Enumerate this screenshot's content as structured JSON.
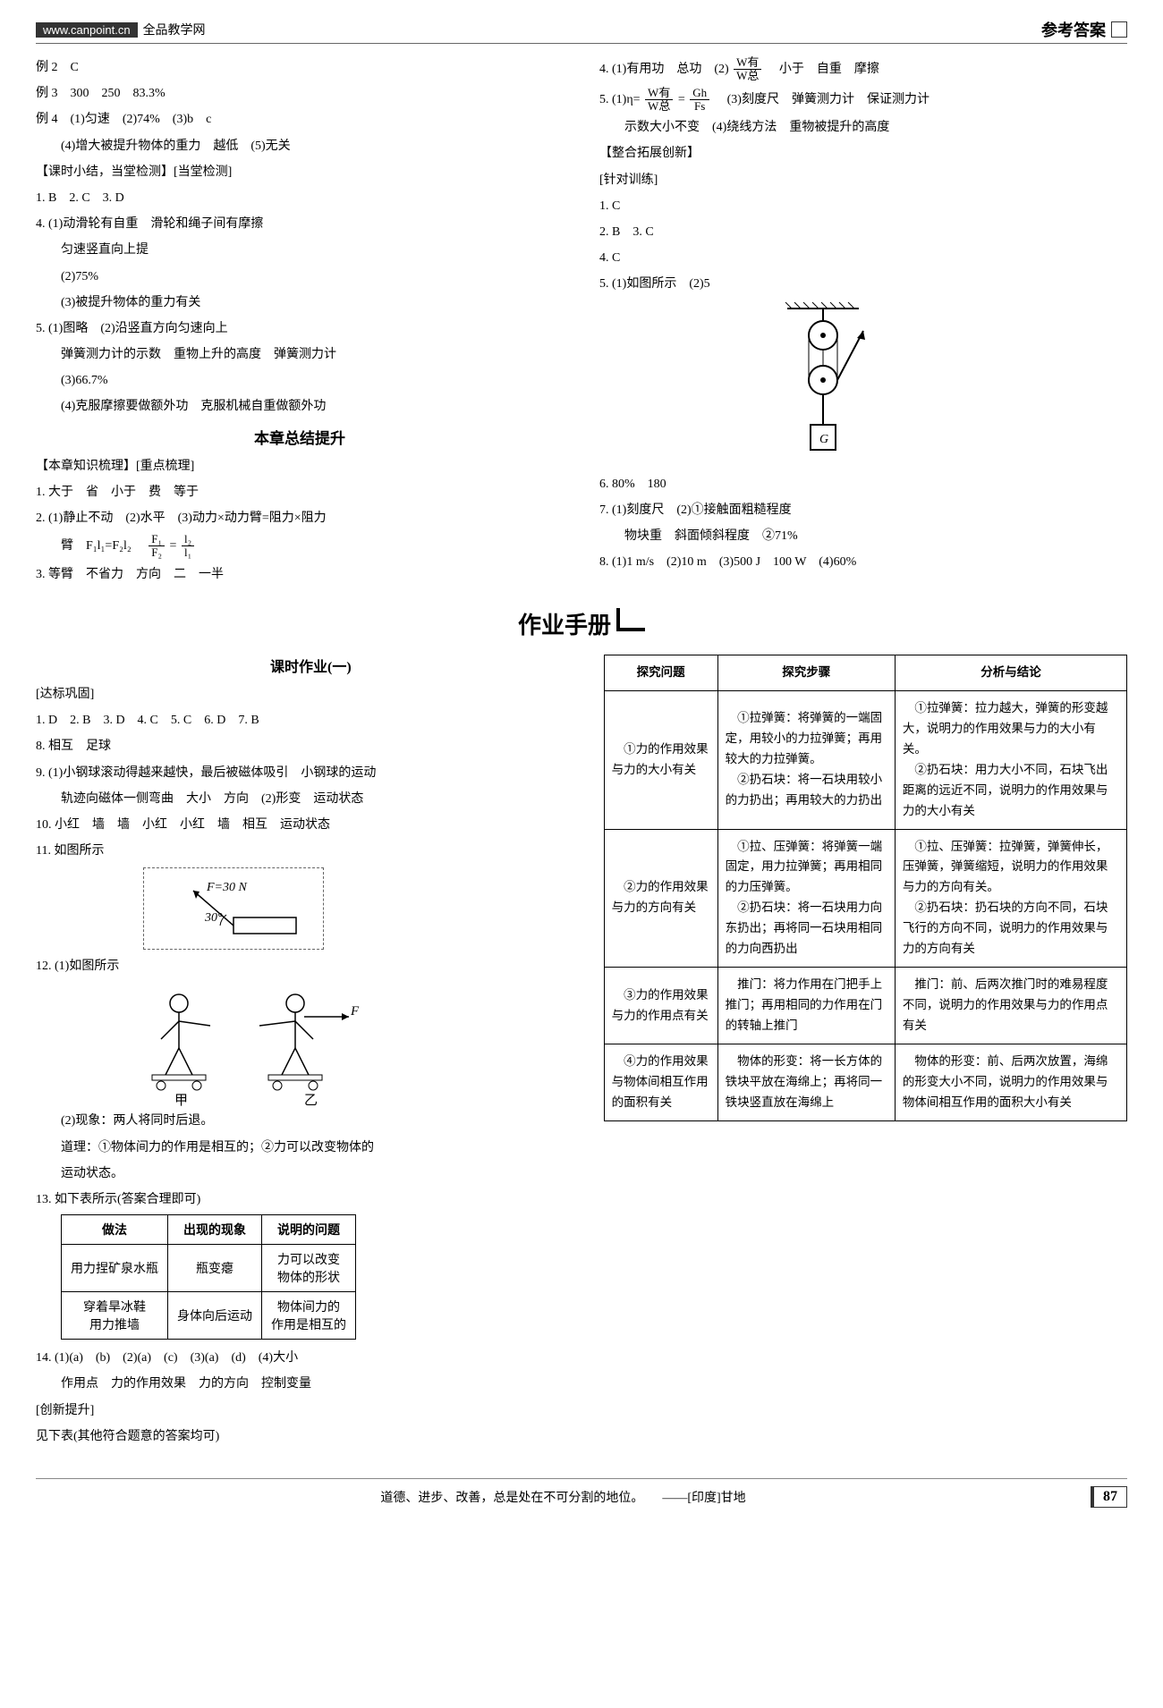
{
  "header": {
    "url": "www.canpoint.cn",
    "site": "全品教学网",
    "right": "参考答案"
  },
  "left_col": {
    "l1": "例 2　C",
    "l2": "例 3　300　250　83.3%",
    "l3": "例 4　(1)匀速　(2)74%　(3)b　c",
    "l4": "(4)增大被提升物体的重力　越低　(5)无关",
    "l5": "【课时小结，当堂检测】[当堂检测]",
    "l6": "1. B　2. C　3. D",
    "l7": "4. (1)动滑轮有自重　滑轮和绳子间有摩擦",
    "l8": "匀速竖直向上提",
    "l9": "(2)75%",
    "l10": "(3)被提升物体的重力有关",
    "l11": "5. (1)图略　(2)沿竖直方向匀速向上",
    "l12": "弹簧测力计的示数　重物上升的高度　弹簧测力计",
    "l13": "(3)66.7%",
    "l14": "(4)克服摩擦要做额外功　克服机械自重做额外功",
    "l15": "本章总结提升",
    "l16": "【本章知识梳理】[重点梳理]",
    "l17": "1. 大于　省　小于　费　等于",
    "l18_a": "2. (1)静止不动　(2)水平　(3)动力×动力臂=阻力×阻力",
    "l18_b_pre": "臂　F₁l₁=F₂l₂　",
    "frac1": {
      "num": "F₁",
      "den": "F₂"
    },
    "eq_mid": "=",
    "frac2": {
      "num": "l₂",
      "den": "l₁"
    },
    "l19": "3. 等臂　不省力　方向　二　一半"
  },
  "right_col": {
    "l1_a": "4. (1)有用功　总功　(2)",
    "frac_w": {
      "num": "W有",
      "den": "W总"
    },
    "l1_b": "　小于　自重　摩擦",
    "l2_a": "5. (1)η=",
    "frac_eta1": {
      "num": "W有",
      "den": "W总"
    },
    "l2_mid": "=",
    "frac_eta2": {
      "num": "Gh",
      "den": "Fs"
    },
    "l2_b": "　(3)刻度尺　弹簧测力计　保证测力计",
    "l3": "示数大小不变　(4)绕线方法　重物被提升的高度",
    "l4": "【整合拓展创新】",
    "l5": "[针对训练]",
    "l6": "1. C",
    "l7": "2. B　3. C",
    "l8": "4. C",
    "l9": "5. (1)如图所示　(2)5",
    "l10": "6. 80%　180",
    "l11": "7. (1)刻度尺　(2)①接触面粗糙程度",
    "l12": "物块重　斜面倾斜程度　②71%",
    "l13": "8. (1)1 m/s　(2)10 m　(3)500 J　100 W　(4)60%"
  },
  "big_title": "作业手册",
  "workbook_left": {
    "title": "课时作业(一)",
    "l1": "[达标巩固]",
    "l2": "1. D　2. B　3. D　4. C　5. C　6. D　7. B",
    "l3": "8. 相互　足球",
    "l4": "9. (1)小钢球滚动得越来越快，最后被磁体吸引　小钢球的运动",
    "l5": "轨迹向磁体一侧弯曲　大小　方向　(2)形变　运动状态",
    "l6": "10. 小红　墙　墙　小红　小红　墙　相互　运动状态",
    "l7": "11. 如图所示",
    "fig_f": "F=30 N",
    "fig_angle": "30°",
    "l8": "12. (1)如图所示",
    "skate_jia": "甲",
    "skate_yi": "乙",
    "skate_f": "F",
    "l9": "(2)现象：两人将同时后退。",
    "l10": "道理：①物体间力的作用是相互的；②力可以改变物体的",
    "l11": "运动状态。",
    "l12": "13. 如下表所示(答案合理即可)",
    "table13": {
      "headers": [
        "做法",
        "出现的现象",
        "说明的问题"
      ],
      "rows": [
        [
          "用力捏矿泉水瓶",
          "瓶变瘪",
          "力可以改变\n物体的形状"
        ],
        [
          "穿着旱冰鞋\n用力推墙",
          "身体向后运动",
          "物体间力的\n作用是相互的"
        ]
      ]
    },
    "l13": "14. (1)(a)　(b)　(2)(a)　(c)　(3)(a)　(d)　(4)大小",
    "l14": "作用点　力的作用效果　力的方向　控制变量",
    "l15": "[创新提升]",
    "l16": "见下表(其他符合题意的答案均可)"
  },
  "workbook_right": {
    "headers": [
      "探究问题",
      "探究步骤",
      "分析与结论"
    ],
    "rows": [
      [
        "①力的作用效果与力的大小有关",
        "①拉弹簧：将弹簧的一端固定，用较小的力拉弹簧；再用较大的力拉弹簧。\n②扔石块：将一石块用较小的力扔出；再用较大的力扔出",
        "①拉弹簧：拉力越大，弹簧的形变越大，说明力的作用效果与力的大小有关。\n②扔石块：用力大小不同，石块飞出距离的远近不同，说明力的作用效果与力的大小有关"
      ],
      [
        "②力的作用效果与力的方向有关",
        "①拉、压弹簧：将弹簧一端固定，用力拉弹簧；再用相同的力压弹簧。\n②扔石块：将一石块用力向东扔出；再将同一石块用相同的力向西扔出",
        "①拉、压弹簧：拉弹簧，弹簧伸长，压弹簧，弹簧缩短，说明力的作用效果与力的方向有关。\n②扔石块：扔石块的方向不同，石块飞行的方向不同，说明力的作用效果与力的方向有关"
      ],
      [
        "③力的作用效果与力的作用点有关",
        "推门：将力作用在门把手上推门；再用相同的力作用在门的转轴上推门",
        "推门：前、后两次推门时的难易程度不同，说明力的作用效果与力的作用点有关"
      ],
      [
        "④力的作用效果与物体间相互作用的面积有关",
        "物体的形变：将一长方体的铁块平放在海绵上；再将同一铁块竖直放在海绵上",
        "物体的形变：前、后两次放置，海绵的形变大小不同，说明力的作用效果与物体间相互作用的面积大小有关"
      ]
    ]
  },
  "footer": {
    "quote": "道德、进步、改善，总是处在不可分割的地位。　　——[印度]甘地",
    "page": "87"
  }
}
